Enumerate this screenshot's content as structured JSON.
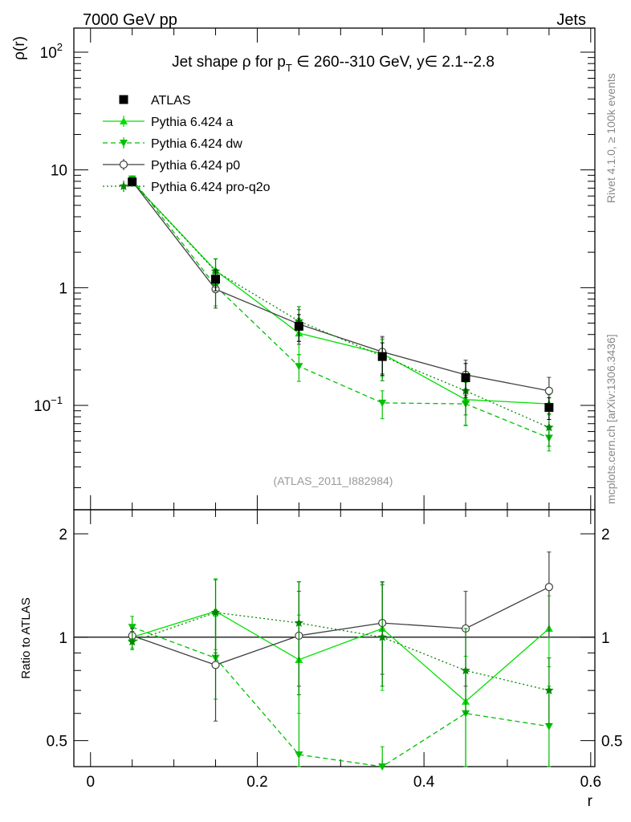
{
  "header": {
    "left": "7000 GeV pp",
    "right": "Jets"
  },
  "side_labels": {
    "rivet": "Rivet 4.1.0, ≥ 100k events",
    "mcplots": "mcplots.cern.ch [arXiv:1306.3436]"
  },
  "chart_data": [
    {
      "type": "line",
      "panel": "main",
      "title_parts": {
        "prefix": "Jet shape ρ for p",
        "sub": "T",
        "suffix": " ∈ 260--310 GeV, y∈ 2.1--2.8"
      },
      "ylabel": "ρ(r)",
      "yscale": "log",
      "ylim": [
        0.013,
        160
      ],
      "xlim": [
        -0.02,
        0.605
      ],
      "ytick_labels": [
        {
          "value": 100,
          "base": "10",
          "exp": "2"
        },
        {
          "value": 10,
          "base": "10",
          "exp": ""
        },
        {
          "value": 1,
          "base": "1",
          "exp": ""
        },
        {
          "value": 0.1,
          "base": "10",
          "exp": "−1"
        }
      ],
      "watermark": "(ATLAS_2011_I882984)",
      "x": [
        0.05,
        0.15,
        0.25,
        0.35,
        0.45,
        0.55
      ],
      "series": [
        {
          "name": "ATLAS",
          "color": "#000000",
          "marker": "square",
          "line": "none",
          "values": [
            7.9,
            1.18,
            0.47,
            0.26,
            0.172,
            0.096
          ],
          "err": [
            0.4,
            0.24,
            0.12,
            0.08,
            0.055,
            0.02
          ]
        },
        {
          "name": "Pythia 6.424 a",
          "color": "#00e000",
          "marker": "triangle-up",
          "line": "solid",
          "values": [
            7.9,
            1.4,
            0.41,
            0.275,
            0.112,
            0.103
          ],
          "err": [
            0.5,
            0.35,
            0.14,
            0.1,
            0.045,
            0.02
          ]
        },
        {
          "name": "Pythia 6.424 dw",
          "color": "#00c000",
          "marker": "triangle-down",
          "line": "dashed",
          "values": [
            8.4,
            1.03,
            0.215,
            0.105,
            0.103,
            0.053
          ],
          "err": [
            0.5,
            0.33,
            0.055,
            0.028,
            0.035,
            0.012
          ]
        },
        {
          "name": "Pythia 6.424 p0",
          "color": "#404040",
          "marker": "circle-open",
          "line": "solid",
          "values": [
            8.0,
            0.97,
            0.49,
            0.285,
            0.182,
            0.133
          ],
          "err": [
            0.5,
            0.3,
            0.16,
            0.1,
            0.06,
            0.04
          ]
        },
        {
          "name": "Pythia 6.424 pro-q2o",
          "color": "#008800",
          "marker": "star",
          "line": "dotted",
          "values": [
            7.9,
            1.38,
            0.52,
            0.262,
            0.133,
            0.065
          ],
          "err": [
            0.5,
            0.38,
            0.17,
            0.1,
            0.05,
            0.02
          ]
        }
      ]
    },
    {
      "type": "line",
      "panel": "ratio",
      "ylabel": "Ratio to ATLAS",
      "xlabel": "r",
      "yscale": "log",
      "ylim": [
        0.42,
        2.35
      ],
      "reference_line": 1,
      "ytick_labels": [
        "2",
        "1",
        "0.5"
      ],
      "xtick_labels": [
        "0",
        "0.2",
        "0.4",
        "0.6"
      ],
      "x": [
        0.05,
        0.15,
        0.25,
        0.35,
        0.45,
        0.55
      ],
      "series": [
        {
          "name": "Pythia 6.424 a",
          "values": [
            1.0,
            1.19,
            0.86,
            1.06,
            0.65,
            1.06
          ],
          "lo": [
            0.93,
            0.92,
            0.6,
            0.7,
            0.42,
            0.82
          ],
          "hi": [
            1.07,
            1.48,
            1.16,
            1.44,
            0.88,
            1.32
          ]
        },
        {
          "name": "Pythia 6.424 dw",
          "values": [
            1.07,
            0.87,
            0.455,
            0.4,
            0.6,
            0.55
          ],
          "lo": [
            0.99,
            0.66,
            0.33,
            0.28,
            0.42,
            0.4
          ],
          "hi": [
            1.15,
            1.15,
            1.45,
            0.48,
            0.8,
            0.72
          ]
        },
        {
          "name": "Pythia 6.424 p0",
          "values": [
            1.01,
            0.83,
            1.01,
            1.1,
            1.06,
            1.4
          ],
          "lo": [
            0.96,
            0.57,
            0.72,
            0.78,
            0.72,
            1.0
          ],
          "hi": [
            1.06,
            1.2,
            1.36,
            1.45,
            1.36,
            1.77
          ]
        },
        {
          "name": "Pythia 6.424 pro-q2o",
          "values": [
            0.97,
            1.18,
            1.1,
            1.0,
            0.8,
            0.7
          ],
          "lo": [
            0.92,
            0.9,
            0.68,
            0.72,
            0.6,
            0.56
          ],
          "hi": [
            1.04,
            1.47,
            1.45,
            1.42,
            1.06,
            0.87
          ]
        }
      ]
    }
  ]
}
